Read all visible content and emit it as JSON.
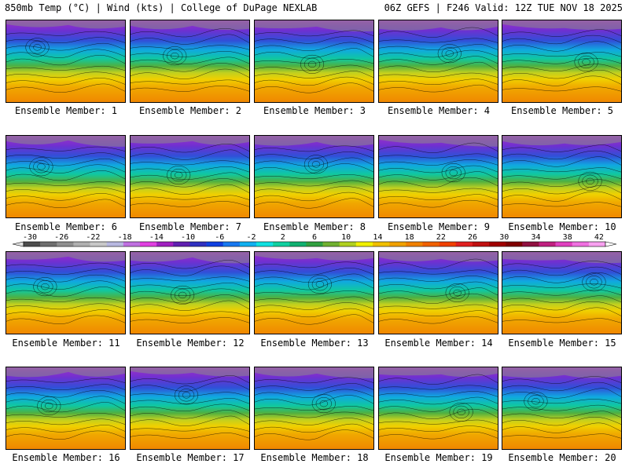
{
  "header": {
    "left": "850mb Temp (°C) | Wind (kts) | College of DuPage NEXLAB",
    "right": "06Z GEFS | F246 Valid: 12Z TUE NOV 18 2025"
  },
  "members": [
    {
      "label": "Ensemble Member: 1"
    },
    {
      "label": "Ensemble Member: 2"
    },
    {
      "label": "Ensemble Member: 3"
    },
    {
      "label": "Ensemble Member: 4"
    },
    {
      "label": "Ensemble Member: 5"
    },
    {
      "label": "Ensemble Member: 6"
    },
    {
      "label": "Ensemble Member: 7"
    },
    {
      "label": "Ensemble Member: 8"
    },
    {
      "label": "Ensemble Member: 9"
    },
    {
      "label": "Ensemble Member: 10"
    },
    {
      "label": "Ensemble Member: 11"
    },
    {
      "label": "Ensemble Member: 12"
    },
    {
      "label": "Ensemble Member: 13"
    },
    {
      "label": "Ensemble Member: 14"
    },
    {
      "label": "Ensemble Member: 15"
    },
    {
      "label": "Ensemble Member: 16"
    },
    {
      "label": "Ensemble Member: 17"
    },
    {
      "label": "Ensemble Member: 18"
    },
    {
      "label": "Ensemble Member: 19"
    },
    {
      "label": "Ensemble Member: 20"
    }
  ],
  "colorbar": {
    "tick_labels": [
      "-30",
      "-26",
      "-22",
      "-18",
      "-14",
      "-10",
      "-6",
      "-2",
      "2",
      "6",
      "10",
      "14",
      "18",
      "22",
      "26",
      "30",
      "34",
      "38",
      "42"
    ],
    "colors": [
      "#4d4d4d",
      "#6e6e6e",
      "#8f8f8f",
      "#b0b0b0",
      "#c8c8c8",
      "#b8b8e0",
      "#c070e0",
      "#e040e0",
      "#a020c0",
      "#6020b0",
      "#3030c0",
      "#1040e0",
      "#1878f0",
      "#10b0f0",
      "#10e0e0",
      "#10d0a0",
      "#10b070",
      "#30a040",
      "#70b030",
      "#b0d020",
      "#f0f000",
      "#f0c000",
      "#f0a000",
      "#f08000",
      "#f06000",
      "#f04000",
      "#e02020",
      "#c01010",
      "#a00000",
      "#800000",
      "#901040",
      "#c02080",
      "#e040c0",
      "#f070e0",
      "#f8a0f0"
    ]
  }
}
